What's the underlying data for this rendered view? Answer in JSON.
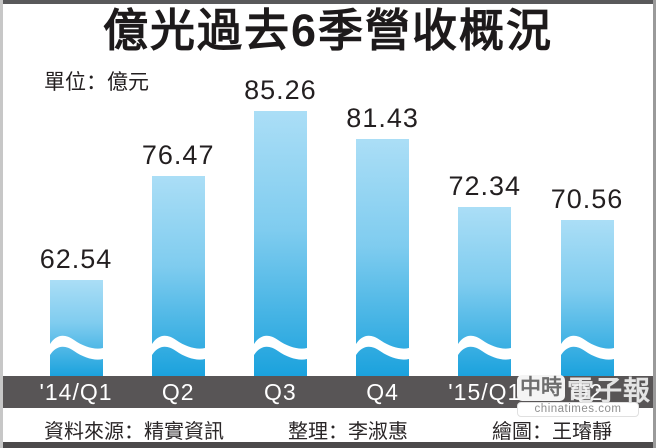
{
  "title": "億光過去6季營收概況",
  "unit_label": "單位：億元",
  "chart_data": {
    "type": "bar",
    "title": "億光過去6季營收概況",
    "ylabel": "億元",
    "categories": [
      "'14/Q1",
      "Q2",
      "Q3",
      "Q4",
      "'15/Q1",
      "Q2"
    ],
    "values": [
      62.54,
      76.47,
      85.26,
      81.43,
      72.34,
      70.56
    ],
    "value_labels": [
      "62.54",
      "76.47",
      "85.26",
      "81.43",
      "72.34",
      "70.56"
    ],
    "axis_break": true,
    "ylim": [
      50,
      90
    ],
    "grid": false,
    "legend": "none",
    "bar_color_top": "#abdef6",
    "bar_color_bottom": "#1ba2dd",
    "axis_band_color": "#585556"
  },
  "footer": {
    "source": "資料來源：精實資訊",
    "editor": "整理：李淑惠",
    "illustrator": "繪圖：王璿靜"
  },
  "watermark": {
    "brand_badge": "中時",
    "brand_name": "電子報",
    "domain": "chinatimes.com"
  }
}
